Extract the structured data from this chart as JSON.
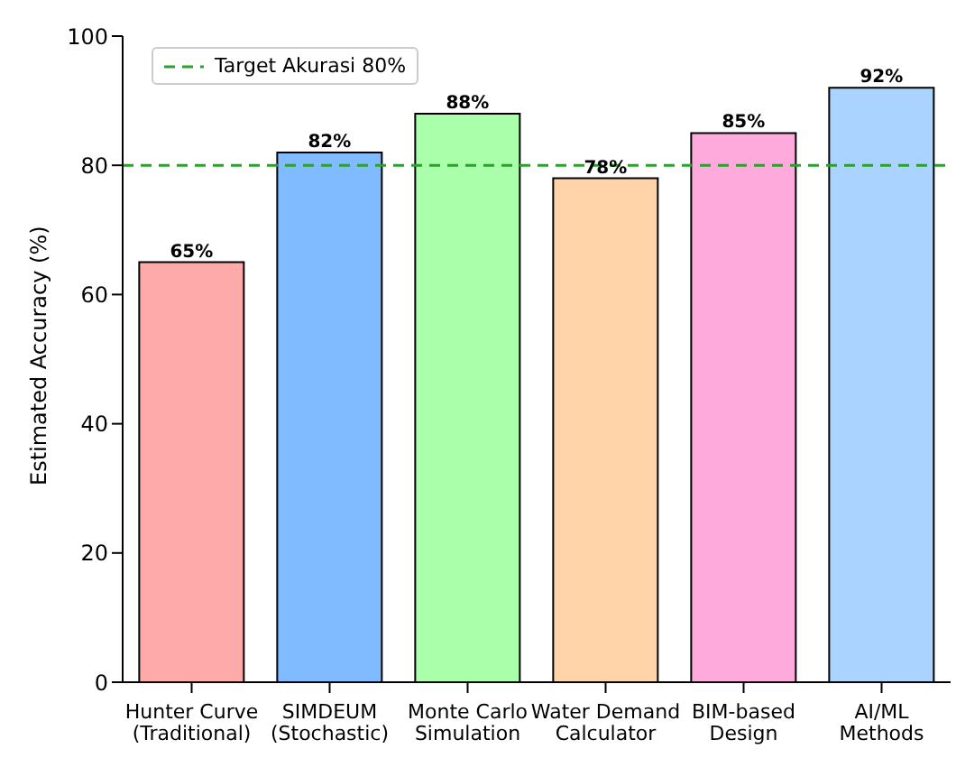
{
  "chart_data": {
    "type": "bar",
    "ylabel": "Estimated Accuracy (%)",
    "categories": [
      "Hunter Curve\n(Traditional)",
      "SIMDEUM\n(Stochastic)",
      "Monte Carlo\nSimulation",
      "Water Demand\nCalculator",
      "BIM-based\nDesign",
      "AI/ML\nMethods"
    ],
    "values": [
      65,
      82,
      88,
      78,
      85,
      92
    ],
    "colors": [
      "#ffaaaa",
      "#80bbff",
      "#aaffaa",
      "#ffd4a8",
      "#ffaadd",
      "#aad4ff"
    ],
    "value_labels": [
      "65%",
      "82%",
      "88%",
      "78%",
      "85%",
      "92%"
    ],
    "ylim": [
      0,
      100
    ],
    "yticks": [
      0,
      20,
      40,
      60,
      80,
      100
    ],
    "ref_lines": [
      {
        "axis": "y",
        "value": 80,
        "label": "Target Akurasi 80%",
        "color": "#2ca02c",
        "line_style": "dashed"
      }
    ],
    "legend": "top left",
    "grid": false
  }
}
